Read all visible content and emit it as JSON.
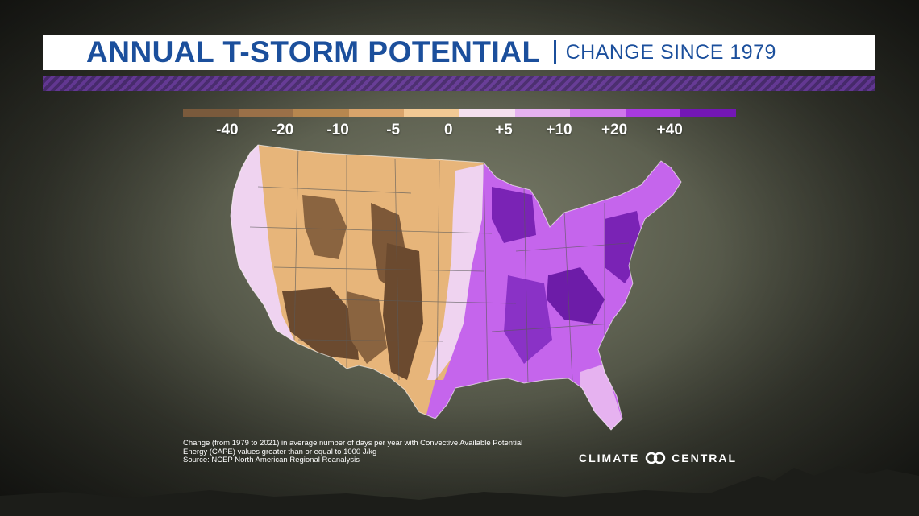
{
  "header": {
    "title": "ANNUAL T-STORM POTENTIAL",
    "subtitle": "CHANGE SINCE 1979"
  },
  "legend": {
    "ticks": [
      "-40",
      "-20",
      "-10",
      "-5",
      "0",
      "+5",
      "+10",
      "+20",
      "+40"
    ],
    "colors": [
      "#7a5a3c",
      "#9a7048",
      "#b7874f",
      "#d9a46b",
      "#f2c994",
      "#f5e0ef",
      "#e6b2f0",
      "#cf76ec",
      "#a83ae0",
      "#7317b5"
    ]
  },
  "map": {
    "region": "Contiguous United States",
    "accent_colors": {
      "decrease_strong": "#6b4a2f",
      "decrease": "#a7774a",
      "decrease_light": "#e7b57a",
      "neutral": "#f3d9ec",
      "increase_light": "#dc96f2",
      "increase": "#b24be6",
      "increase_strong": "#6d1ca8"
    }
  },
  "footer": {
    "caption_line1": "Change (from 1979 to 2021) in average number of days per year with Convective Available Potential",
    "caption_line2": "Energy (CAPE) values greater than or equal to 1000 J/kg",
    "source": "Source: NCEP North American Regional Reanalysis",
    "logo_left": "CLIMATE",
    "logo_right": "CENTRAL"
  }
}
